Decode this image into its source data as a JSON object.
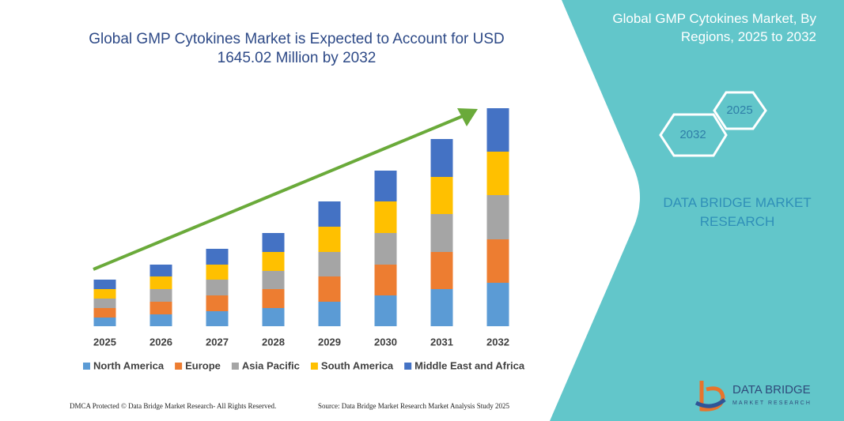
{
  "chart_data": {
    "type": "bar",
    "stacked": true,
    "title": "Global GMP Cytokines Market is Expected to Account for USD 1645.02 Million by 2032",
    "categories": [
      "2025",
      "2026",
      "2027",
      "2028",
      "2029",
      "2030",
      "2031",
      "2032"
    ],
    "series": [
      {
        "name": "North America",
        "color": "#5b9bd5",
        "values": [
          11,
          15,
          19,
          23,
          31,
          39,
          47,
          55
        ]
      },
      {
        "name": "Europe",
        "color": "#ed7d31",
        "values": [
          12,
          16,
          20,
          24,
          32,
          39,
          47,
          55
        ]
      },
      {
        "name": "Asia Pacific",
        "color": "#a5a5a5",
        "values": [
          12,
          16,
          20,
          23,
          31,
          40,
          48,
          56
        ]
      },
      {
        "name": "South America",
        "color": "#ffc000",
        "values": [
          12,
          16,
          19,
          24,
          32,
          40,
          47,
          55
        ]
      },
      {
        "name": "Middle East and Africa",
        "color": "#4472c4",
        "values": [
          12,
          15,
          20,
          24,
          32,
          39,
          48,
          55
        ]
      }
    ],
    "ylim": [
      0,
      276
    ],
    "legend": "bottom",
    "trend_arrow_color": "#6aaa3a"
  },
  "panel": {
    "title": "Global GMP Cytokines Market, By Regions, 2025 to 2032",
    "hexagons": [
      "2025",
      "2032"
    ],
    "brand": "DATA BRIDGE MARKET RESEARCH"
  },
  "footer": {
    "left": "DMCA Protected © Data Bridge Market Research- All Rights Reserved.",
    "right": "Source: Data Bridge Market Research Market Analysis Study 2025"
  },
  "logo": {
    "name": "DATA BRIDGE",
    "tagline": "MARKET RESEARCH"
  }
}
